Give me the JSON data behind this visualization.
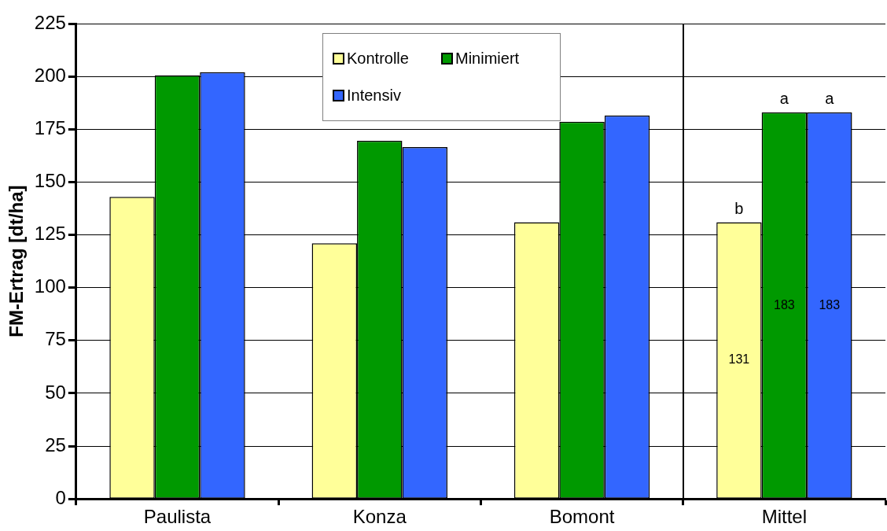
{
  "chart_data": {
    "type": "bar",
    "ylabel": "FM-Ertrag [dt/ha]",
    "categories": [
      "Paulista",
      "Konza",
      "Bomont",
      "Mittel"
    ],
    "series": [
      {
        "name": "Kontrolle",
        "color": "#ffff99",
        "values": [
          143,
          121,
          131,
          131
        ],
        "value_labels": [
          null,
          null,
          null,
          "131"
        ]
      },
      {
        "name": "Minimiert",
        "color": "#009900",
        "values": [
          200.5,
          169.5,
          178.5,
          183
        ],
        "value_labels": [
          null,
          null,
          null,
          "183"
        ]
      },
      {
        "name": "Intensiv",
        "color": "#3366ff",
        "values": [
          202,
          166.5,
          181.5,
          183
        ],
        "value_labels": [
          null,
          null,
          null,
          "183"
        ]
      }
    ],
    "ylim": [
      0,
      225
    ],
    "yticks": [
      0,
      25,
      50,
      75,
      100,
      125,
      150,
      175,
      200,
      225
    ],
    "grid": "y",
    "legend": "top",
    "annotations": [
      "b",
      "a",
      "a"
    ]
  }
}
